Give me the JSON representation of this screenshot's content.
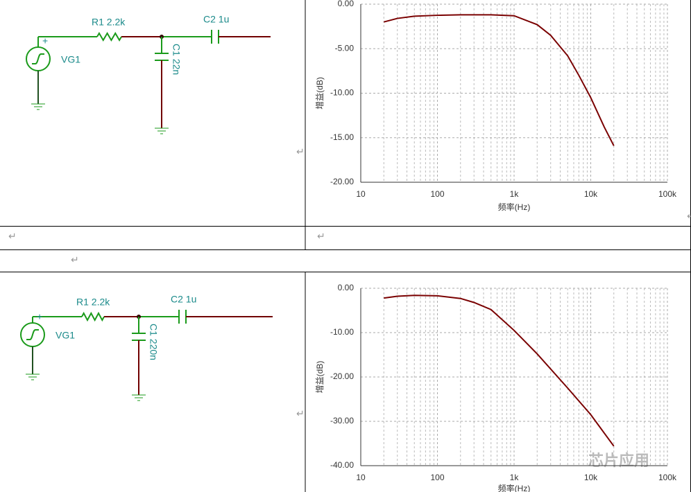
{
  "chart_data": [
    {
      "type": "line",
      "xlabel": "频率(Hz)",
      "ylabel": "增益(dB)",
      "log_x": true,
      "grid": true,
      "xlim": [
        10,
        100000
      ],
      "ylim": [
        -20,
        0
      ],
      "xticks": [
        10,
        100,
        {
          "value": 1000,
          "label": "1k"
        },
        {
          "value": 10000,
          "label": "10k"
        },
        {
          "value": 100000,
          "label": "100k"
        }
      ],
      "yticks": [
        {
          "value": 0,
          "label": "0.00"
        },
        {
          "value": -5,
          "label": "-5.00"
        },
        {
          "value": -10,
          "label": "-10.00"
        },
        {
          "value": -15,
          "label": "-15.00"
        },
        {
          "value": -20,
          "label": "-20.00"
        }
      ],
      "series": [
        {
          "color": "#7a0000",
          "x": [
            20,
            30,
            50,
            100,
            200,
            500,
            1000,
            2000,
            3000,
            5000,
            7000,
            10000,
            15000,
            20000
          ],
          "values": [
            -2.0,
            -1.6,
            -1.35,
            -1.25,
            -1.2,
            -1.2,
            -1.3,
            -2.3,
            -3.5,
            -5.8,
            -8.0,
            -10.5,
            -13.8,
            -15.9
          ]
        }
      ]
    },
    {
      "type": "line",
      "xlabel": "频率(Hz)",
      "ylabel": "增益(dB)",
      "log_x": true,
      "grid": true,
      "xlim": [
        10,
        100000
      ],
      "ylim": [
        -40,
        0
      ],
      "xticks": [
        10,
        100,
        {
          "value": 1000,
          "label": "1k"
        },
        {
          "value": 10000,
          "label": "10k"
        },
        {
          "value": 100000,
          "label": "100k"
        }
      ],
      "yticks": [
        {
          "value": 0,
          "label": "0.00"
        },
        {
          "value": -10,
          "label": "-10.00"
        },
        {
          "value": -20,
          "label": "-20.00"
        },
        {
          "value": -30,
          "label": "-30.00"
        },
        {
          "value": -40,
          "label": "-40.00"
        }
      ],
      "series": [
        {
          "color": "#7a0000",
          "x": [
            20,
            30,
            50,
            100,
            200,
            300,
            500,
            1000,
            2000,
            5000,
            10000,
            20000
          ],
          "values": [
            -2.2,
            -1.8,
            -1.6,
            -1.7,
            -2.3,
            -3.2,
            -4.8,
            -9.5,
            -14.8,
            -22.5,
            -28.5,
            -35.6
          ]
        }
      ]
    }
  ],
  "circuits": [
    {
      "resistor": "R1 2.2k",
      "c_series": "C2 1u",
      "c_shunt": "C1 22n",
      "source": "VG1",
      "polarity": "+"
    },
    {
      "resistor": "R1 2.2k",
      "c_series": "C2 1u",
      "c_shunt": "C1 220n",
      "source": "VG1",
      "polarity": "+"
    }
  ],
  "para_mark": "↵",
  "watermark": "芯片应用"
}
